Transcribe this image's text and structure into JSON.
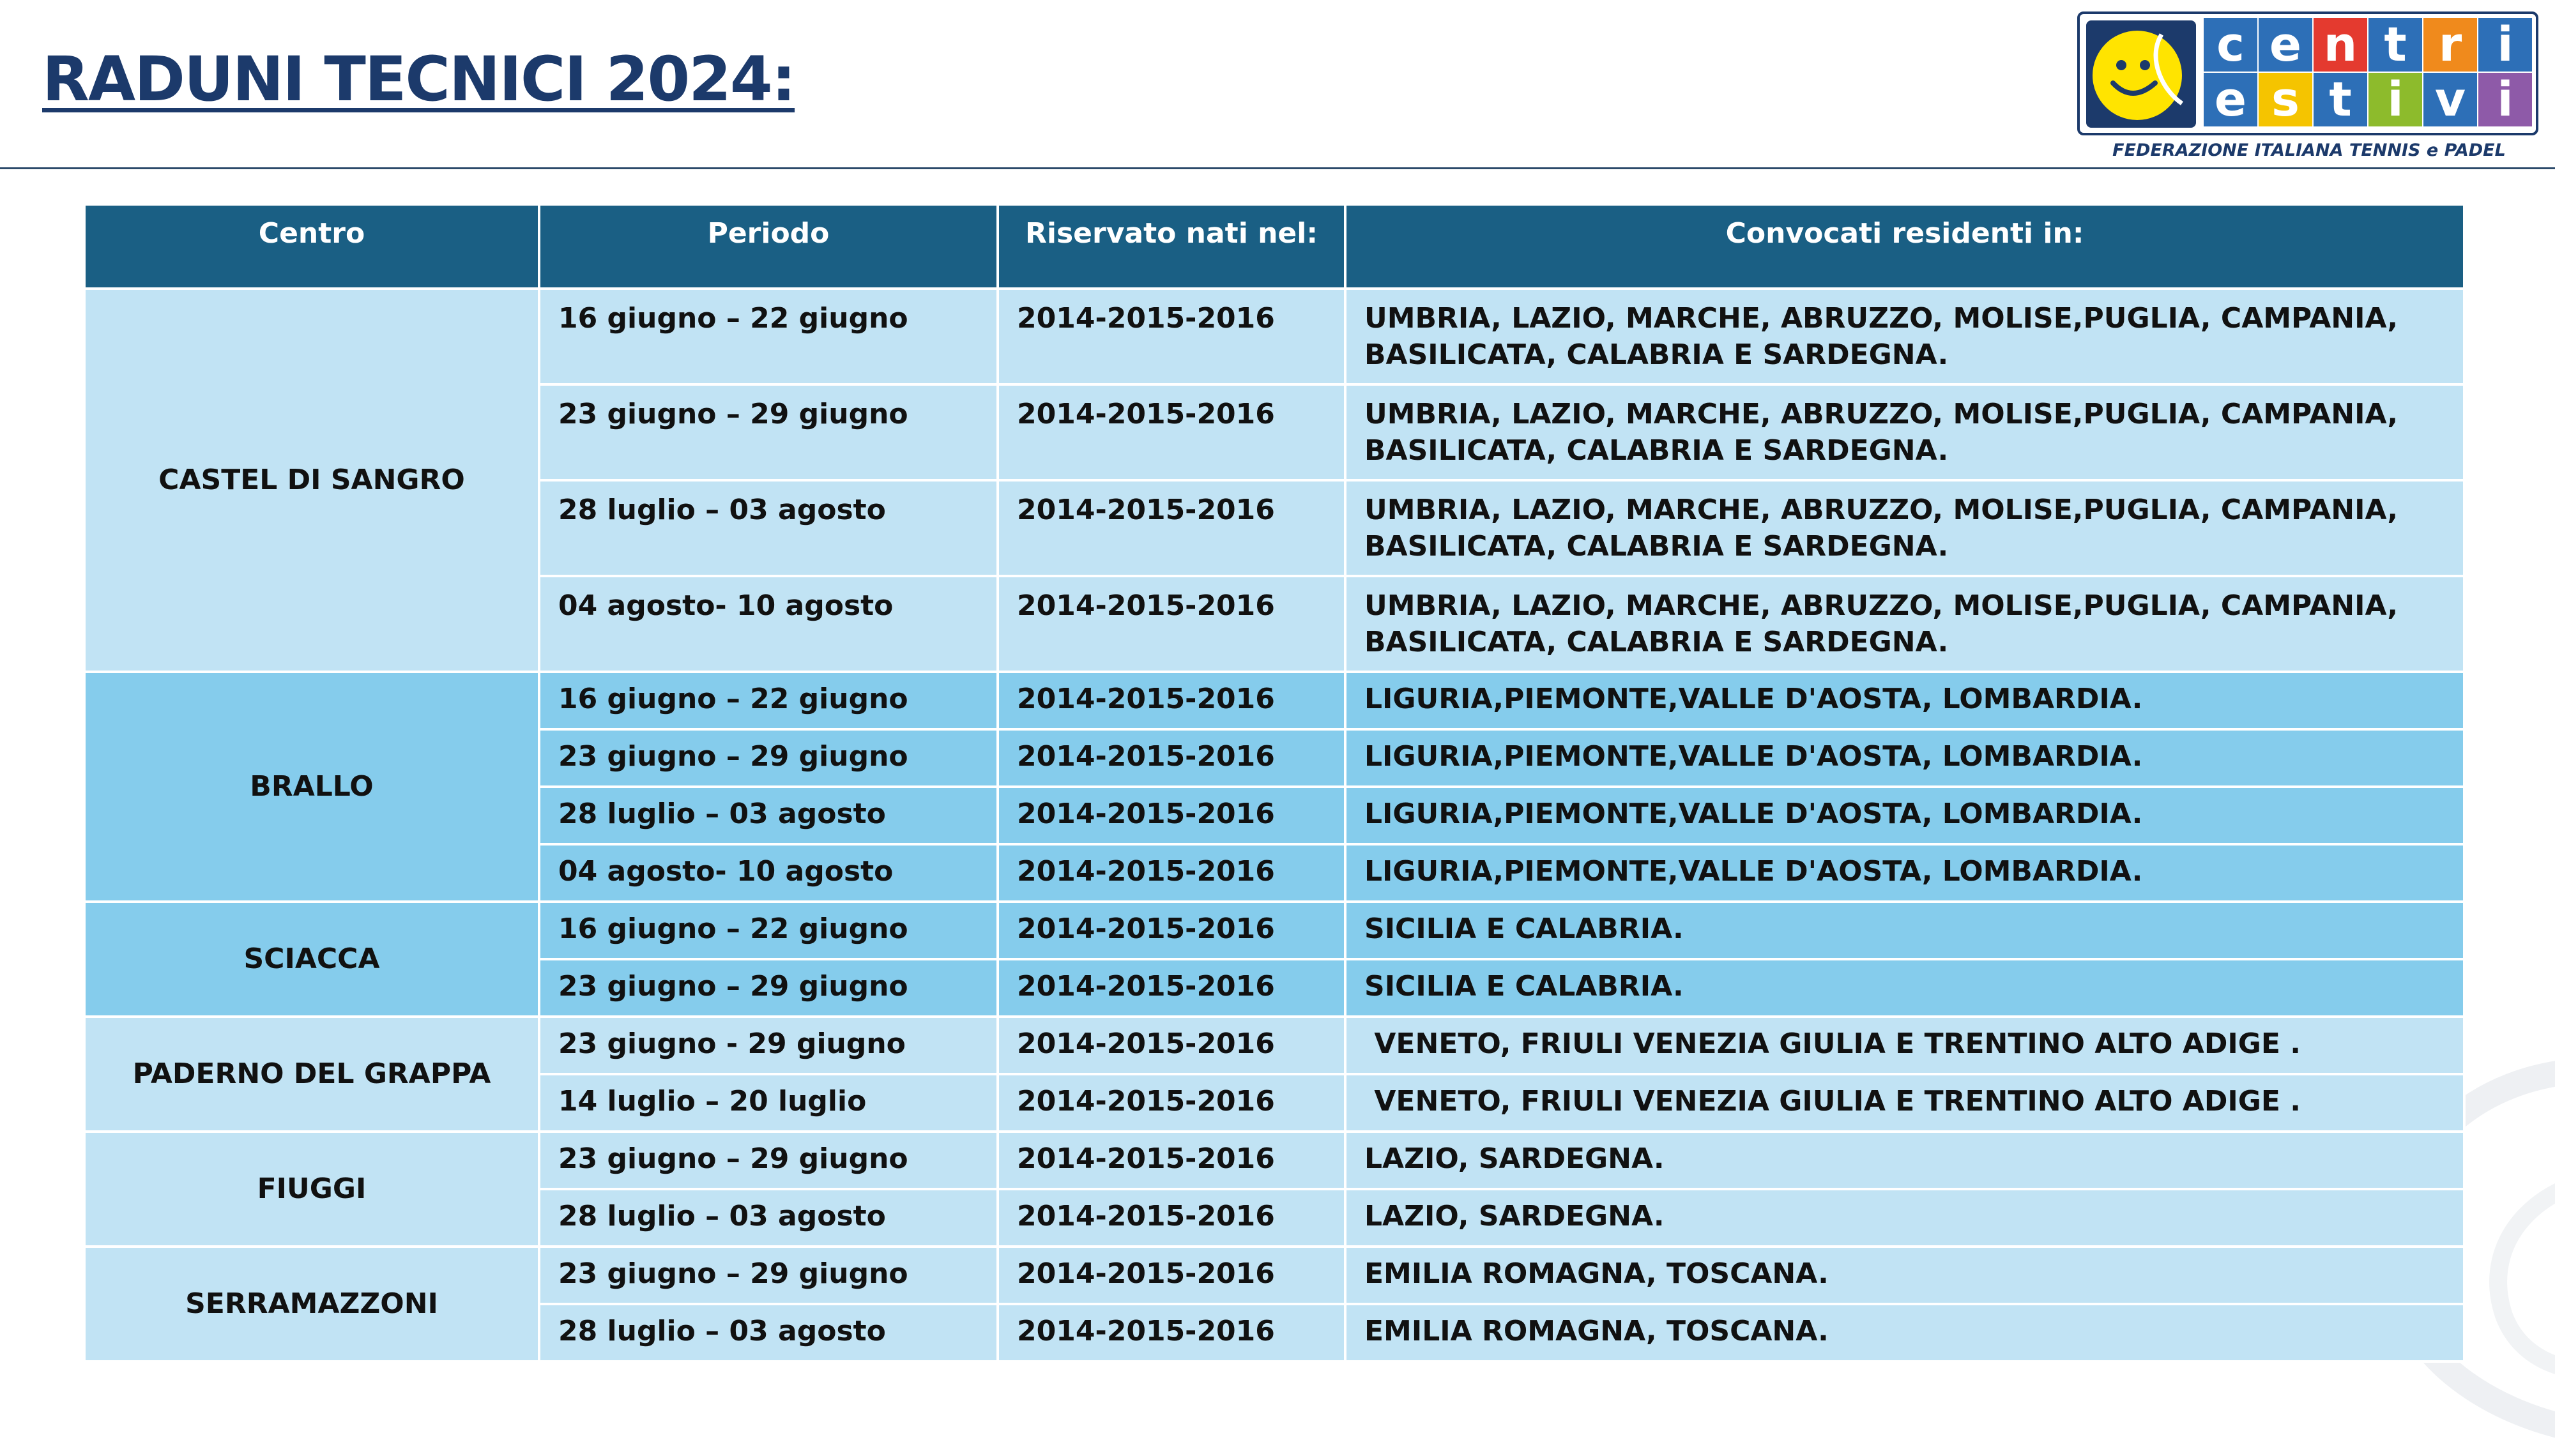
{
  "page": {
    "title": "RADUNI TECNICI 2024:"
  },
  "logo": {
    "tiles_top": [
      {
        "letter": "c",
        "color": "#2d6fb7"
      },
      {
        "letter": "e",
        "color": "#2d6fb7"
      },
      {
        "letter": "n",
        "color": "#e43a2f"
      },
      {
        "letter": "t",
        "color": "#2d6fb7"
      },
      {
        "letter": "r",
        "color": "#f08a1c"
      },
      {
        "letter": "i",
        "color": "#2d6fb7"
      }
    ],
    "tiles_bottom": [
      {
        "letter": "e",
        "color": "#2d6fb7"
      },
      {
        "letter": "s",
        "color": "#f5c400"
      },
      {
        "letter": "t",
        "color": "#2d6fb7"
      },
      {
        "letter": "i",
        "color": "#8dbb2c"
      },
      {
        "letter": "v",
        "color": "#2d6fb7"
      },
      {
        "letter": "i",
        "color": "#8e5aa8"
      }
    ],
    "federation": "FEDERAZIONE ITALIANA TENNIS e PADEL"
  },
  "table": {
    "headers": [
      "Centro",
      "Periodo",
      "Riservato nati nel:",
      "Convocati residenti in:"
    ],
    "groups": [
      {
        "centro": "CASTEL DI SANGRO",
        "shade": "light",
        "rows": [
          {
            "periodo": "16 giugno – 22 giugno",
            "nati": "2014-2015-2016",
            "residenti": "UMBRIA, LAZIO, MARCHE, ABRUZZO, MOLISE,PUGLIA, CAMPANIA, BASILICATA, CALABRIA E SARDEGNA."
          },
          {
            "periodo": "23 giugno – 29 giugno",
            "nati": "2014-2015-2016",
            "residenti": "UMBRIA, LAZIO, MARCHE, ABRUZZO, MOLISE,PUGLIA, CAMPANIA, BASILICATA, CALABRIA E SARDEGNA."
          },
          {
            "periodo": "28 luglio – 03 agosto",
            "nati": "2014-2015-2016",
            "residenti": "UMBRIA, LAZIO, MARCHE, ABRUZZO, MOLISE,PUGLIA, CAMPANIA, BASILICATA, CALABRIA E SARDEGNA."
          },
          {
            "periodo": "04 agosto- 10 agosto",
            "nati": "2014-2015-2016",
            "residenti": "UMBRIA, LAZIO, MARCHE, ABRUZZO, MOLISE,PUGLIA, CAMPANIA, BASILICATA, CALABRIA E SARDEGNA."
          }
        ]
      },
      {
        "centro": "BRALLO",
        "shade": "mid",
        "rows": [
          {
            "periodo": "16 giugno – 22 giugno",
            "nati": "2014-2015-2016",
            "residenti": "LIGURIA,PIEMONTE,VALLE D'AOSTA, LOMBARDIA."
          },
          {
            "periodo": "23 giugno – 29 giugno",
            "nati": "2014-2015-2016",
            "residenti": "LIGURIA,PIEMONTE,VALLE D'AOSTA, LOMBARDIA."
          },
          {
            "periodo": "28 luglio – 03 agosto",
            "nati": "2014-2015-2016",
            "residenti": "LIGURIA,PIEMONTE,VALLE D'AOSTA, LOMBARDIA."
          },
          {
            "periodo": "04 agosto- 10 agosto",
            "nati": "2014-2015-2016",
            "residenti": "LIGURIA,PIEMONTE,VALLE D'AOSTA, LOMBARDIA."
          }
        ]
      },
      {
        "centro": "SCIACCA",
        "shade": "mid",
        "rows": [
          {
            "periodo": "16 giugno – 22 giugno",
            "nati": "2014-2015-2016",
            "residenti": "SICILIA E CALABRIA."
          },
          {
            "periodo": "23 giugno – 29 giugno",
            "nati": "2014-2015-2016",
            "residenti": "SICILIA E CALABRIA."
          }
        ]
      },
      {
        "centro": "PADERNO DEL GRAPPA",
        "shade": "light",
        "rows": [
          {
            "periodo": "23 giugno  - 29 giugno",
            "nati": "2014-2015-2016",
            "residenti": " VENETO, FRIULI VENEZIA GIULIA E TRENTINO ALTO ADIGE ."
          },
          {
            "periodo": "14 luglio – 20 luglio",
            "nati": "2014-2015-2016",
            "residenti": " VENETO, FRIULI VENEZIA GIULIA E TRENTINO ALTO ADIGE ."
          }
        ]
      },
      {
        "centro": "FIUGGI",
        "shade": "light",
        "rows": [
          {
            "periodo": "23 giugno – 29 giugno",
            "nati": "2014-2015-2016",
            "residenti": "LAZIO, SARDEGNA."
          },
          {
            "periodo": "28 luglio – 03 agosto",
            "nati": "2014-2015-2016",
            "residenti": "LAZIO, SARDEGNA."
          }
        ]
      },
      {
        "centro": "SERRAMAZZONI",
        "shade": "light",
        "rows": [
          {
            "periodo": "23 giugno – 29 giugno",
            "nati": "2014-2015-2016",
            "residenti": "EMILIA ROMAGNA, TOSCANA."
          },
          {
            "periodo": "28 luglio – 03 agosto",
            "nati": "2014-2015-2016",
            "residenti": "EMILIA ROMAGNA, TOSCANA."
          }
        ]
      }
    ]
  }
}
